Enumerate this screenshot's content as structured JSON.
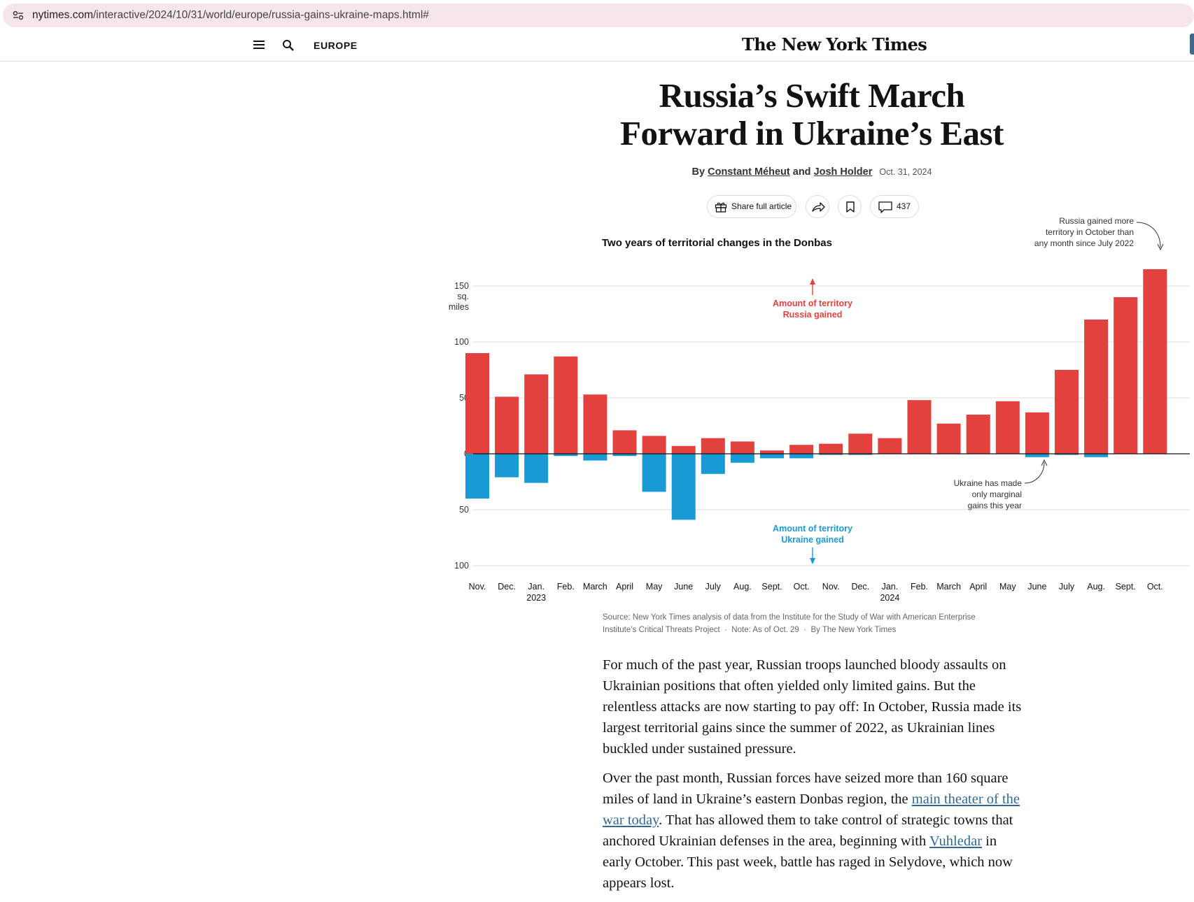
{
  "browser": {
    "url_host": "nytimes.com",
    "url_path": "/interactive/2024/10/31/world/europe/russia-gains-ukraine-maps.html#"
  },
  "header": {
    "section": "EUROPE",
    "masthead": "The New York Times"
  },
  "article": {
    "headline_line1": "Russia’s Swift March",
    "headline_line2": "Forward in Ukraine’s East",
    "byline_by": "By",
    "author1": "Constant Méheut",
    "byline_and": "and",
    "author2": "Josh Holder",
    "date": "Oct. 31, 2024"
  },
  "share": {
    "share_label": "Share full article",
    "comment_count": "437"
  },
  "colors": {
    "russia": "#e3413d",
    "ukraine": "#1a9ad4",
    "link": "#326891"
  },
  "chart_data": {
    "type": "bar",
    "title": "Two years of territorial changes in the Donbas",
    "unit_label": [
      "150",
      "sq.",
      "miles"
    ],
    "y_ticks_top": [
      "150",
      "100",
      "50",
      "0"
    ],
    "y_ticks_bottom": [
      "50",
      "100"
    ],
    "ylim": [
      -100,
      150
    ],
    "categories": [
      "Nov.",
      "Dec.",
      "Jan.",
      "Feb.",
      "March",
      "April",
      "May",
      "June",
      "July",
      "Aug.",
      "Sept.",
      "Oct.",
      "Nov.",
      "Dec.",
      "Jan.",
      "Feb.",
      "March",
      "April",
      "May",
      "June",
      "July",
      "Aug.",
      "Sept.",
      "Oct."
    ],
    "year_labels": [
      {
        "index": 2,
        "label": "2023"
      },
      {
        "index": 14,
        "label": "2024"
      }
    ],
    "series": [
      {
        "name": "Amount of territory Russia gained",
        "values": [
          90,
          51,
          71,
          87,
          53,
          21,
          16,
          7,
          14,
          11,
          3,
          8,
          9,
          18,
          14,
          48,
          27,
          35,
          47,
          37,
          75,
          120,
          140,
          165
        ]
      },
      {
        "name": "Amount of territory Ukraine gained",
        "values": [
          40,
          21,
          26,
          2,
          6,
          2,
          34,
          59,
          18,
          8,
          4,
          4,
          1,
          1,
          0,
          0,
          0,
          0,
          0,
          3,
          1,
          3,
          0,
          0
        ]
      }
    ],
    "annotations": {
      "russia_label": [
        "Amount of territory",
        "Russia gained"
      ],
      "ukraine_label": [
        "Amount of territory",
        "Ukraine gained"
      ],
      "peak_note": [
        "Russia gained more",
        "territory in October than",
        "any month since July 2022"
      ],
      "marginal_note": [
        "Ukraine has made",
        "only marginal",
        "gains this year"
      ]
    },
    "source_line1": "Source: New York Times analysis of data from the Institute for the Study of War with American Enterprise",
    "source_line2": "Institute’s Critical Threats Project",
    "note": "Note: As of Oct. 29",
    "credit": "By The New York Times"
  },
  "body": {
    "p1": "For much of the past year, Russian troops launched bloody assaults on Ukrainian positions that often yielded only limited gains. But the relentless attacks are now starting to pay off:  In October, Russia made its largest territorial gains since the summer of 2022, as Ukrainian lines buckled under sustained pressure.",
    "p2_a": "Over the past month, Russian forces have seized more than 160 square miles of land in Ukraine’s eastern Donbas region, the ",
    "p2_link1": "main theater of the war today",
    "p2_b": ". That has allowed them to take control of strategic towns that anchored Ukrainian defenses in the area, beginning with ",
    "p2_link2": "Vuhledar",
    "p2_c": " in early October. This past week, battle has raged in Selydove, which now appears lost."
  }
}
